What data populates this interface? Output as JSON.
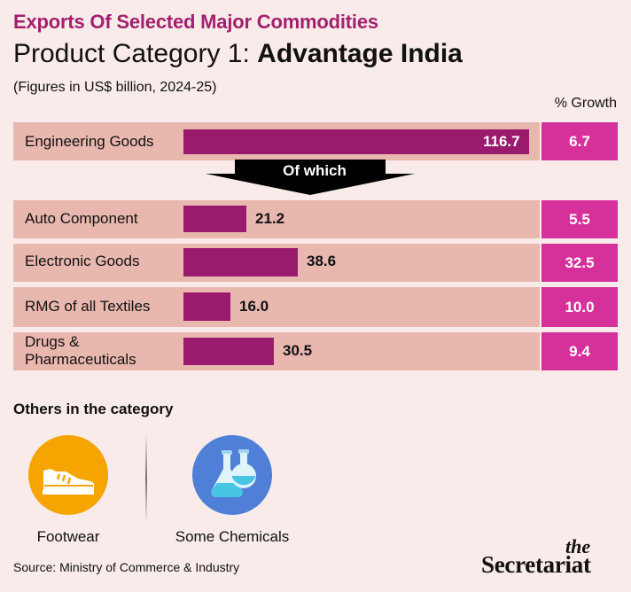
{
  "header": {
    "kicker": "Exports Of Selected Major Commodities",
    "title_prefix": "Product Category 1: ",
    "title_bold": "Advantage India",
    "subtitle": "(Figures in US$ billion, 2024-25)",
    "growth_header": "% Growth"
  },
  "chart_data": {
    "type": "bar",
    "orientation": "horizontal",
    "categories": [
      "Engineering Goods",
      "Auto Component",
      "Electronic Goods",
      "RMG of all Textiles",
      "Drugs & Pharmaceuticals"
    ],
    "values": [
      116.7,
      21.2,
      38.6,
      16.0,
      30.5
    ],
    "value_labels": [
      "116.7",
      "21.2",
      "38.6",
      "16.0",
      "30.5"
    ],
    "growth_percent": [
      "6.7",
      "5.5",
      "32.5",
      "10.0",
      "9.4"
    ],
    "annotation": "Of which",
    "xlim": [
      0,
      116.7
    ],
    "grid": false,
    "colors": {
      "bar": "#9a1a6e",
      "row_bg": "#e8b7ae",
      "growth": "#d6319a"
    }
  },
  "labels": {
    "row0": "Engineering Goods",
    "row1": "Auto Component",
    "row2": "Electronic Goods",
    "row3": "RMG of all Textiles",
    "row4_line1": "Drugs &",
    "row4_line2": "Pharmaceuticals"
  },
  "others": {
    "heading": "Others in the category",
    "items": [
      {
        "label": "Footwear",
        "icon": "shoe-icon",
        "color": "#f6a500"
      },
      {
        "label": "Some Chemicals",
        "icon": "flask-icon",
        "color": "#4f7fd6"
      }
    ]
  },
  "footer": {
    "source": "Source: Ministry of Commerce & Industry",
    "logo_the": "the",
    "logo_main": "Secretariat"
  }
}
